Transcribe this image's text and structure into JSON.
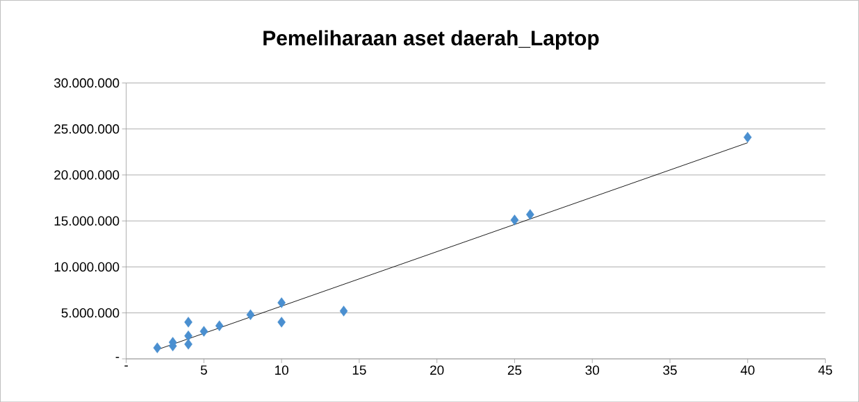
{
  "chart_data": {
    "type": "scatter",
    "title": "Pemeliharaan aset daerah_Laptop",
    "series": [
      {
        "color": "#4a8fd0",
        "marker": "diamond",
        "x": [
          2,
          3,
          3,
          4,
          4,
          4,
          5,
          6,
          8,
          10,
          10,
          14,
          25,
          26,
          40
        ],
        "values": [
          1200000,
          1800000,
          1400000,
          4000000,
          2500000,
          1600000,
          3000000,
          3600000,
          4800000,
          6100000,
          4000000,
          5200000,
          15100000,
          15700000,
          24100000
        ]
      },
      {
        "type": "line",
        "color": "#000000",
        "marker": "none",
        "x": [
          2,
          40
        ],
        "values": [
          1000000,
          23500000
        ]
      }
    ],
    "xlim": [
      0,
      45
    ],
    "ylim": [
      0,
      30000000
    ],
    "xticks": [
      {
        "value": 0,
        "label": "-"
      },
      5,
      10,
      15,
      20,
      25,
      30,
      35,
      40,
      45
    ],
    "yticks": [
      {
        "value": 0,
        "label": "-"
      },
      {
        "value": 5000000,
        "label": "5.000.000"
      },
      {
        "value": 10000000,
        "label": "10.000.000"
      },
      {
        "value": 15000000,
        "label": "15.000.000"
      },
      {
        "value": 20000000,
        "label": "20.000.000"
      },
      {
        "value": 25000000,
        "label": "25.000.000"
      },
      {
        "value": 30000000,
        "label": "30.000.000"
      }
    ],
    "grid": "y"
  }
}
